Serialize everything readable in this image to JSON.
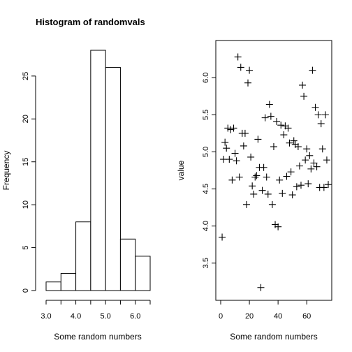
{
  "chart_data": [
    {
      "type": "bar",
      "title": "Histogram of randomvals",
      "xlabel": "Some random numbers",
      "ylabel": "Frequency",
      "bins": [
        {
          "start": 3.0,
          "end": 3.5,
          "count": 1
        },
        {
          "start": 3.5,
          "end": 4.0,
          "count": 2
        },
        {
          "start": 4.0,
          "end": 4.5,
          "count": 8
        },
        {
          "start": 4.5,
          "end": 5.0,
          "count": 28
        },
        {
          "start": 5.0,
          "end": 5.5,
          "count": 26
        },
        {
          "start": 5.5,
          "end": 6.0,
          "count": 6
        },
        {
          "start": 6.0,
          "end": 6.5,
          "count": 4
        }
      ],
      "xlim": [
        3.0,
        6.5
      ],
      "ylim": [
        0,
        28
      ],
      "xticks": [
        3.0,
        3.5,
        4.0,
        4.5,
        5.0,
        5.5,
        6.0,
        6.5
      ],
      "xtick_labels": [
        "3.0",
        "",
        "4.0",
        "",
        "5.0",
        "",
        "6.0",
        ""
      ],
      "yticks": [
        0,
        5,
        10,
        15,
        20,
        25
      ],
      "ytick_labels": [
        "0",
        "5",
        "10",
        "15",
        "20",
        "25"
      ],
      "box": false,
      "grid": false
    },
    {
      "type": "scatter",
      "title": "",
      "xlabel": "Some random numbers",
      "ylabel": "value",
      "marker": "+",
      "xlim": [
        0,
        75
      ],
      "ylim": [
        3.13,
        6.37
      ],
      "xticks": [
        0,
        20,
        40,
        60
      ],
      "xtick_labels": [
        "0",
        "20",
        "40",
        "60"
      ],
      "yticks": [
        3.5,
        4.0,
        4.5,
        5.0,
        5.5,
        6.0
      ],
      "ytick_labels": [
        "3.5",
        "4.0",
        "4.5",
        "5.0",
        "5.5",
        "6.0"
      ],
      "box": true,
      "grid": false,
      "points": [
        [
          1,
          3.85
        ],
        [
          2,
          4.9
        ],
        [
          3,
          5.13
        ],
        [
          4,
          5.05
        ],
        [
          5,
          5.32
        ],
        [
          6,
          4.9
        ],
        [
          7,
          5.3
        ],
        [
          8,
          4.62
        ],
        [
          9,
          5.32
        ],
        [
          10,
          4.98
        ],
        [
          11,
          4.88
        ],
        [
          12,
          6.28
        ],
        [
          13,
          4.66
        ],
        [
          14,
          6.14
        ],
        [
          15,
          5.25
        ],
        [
          16,
          5.08
        ],
        [
          17,
          5.25
        ],
        [
          18,
          4.29
        ],
        [
          19,
          5.93
        ],
        [
          20,
          6.1
        ],
        [
          21,
          4.93
        ],
        [
          22,
          4.54
        ],
        [
          23,
          4.43
        ],
        [
          24,
          4.66
        ],
        [
          25,
          4.68
        ],
        [
          26,
          5.17
        ],
        [
          27,
          4.79
        ],
        [
          28,
          3.17
        ],
        [
          29,
          4.48
        ],
        [
          30,
          4.79
        ],
        [
          31,
          5.46
        ],
        [
          32,
          4.66
        ],
        [
          33,
          4.43
        ],
        [
          34,
          5.64
        ],
        [
          35,
          5.48
        ],
        [
          36,
          4.29
        ],
        [
          37,
          5.07
        ],
        [
          38,
          4.02
        ],
        [
          39,
          5.41
        ],
        [
          40,
          3.99
        ],
        [
          41,
          4.62
        ],
        [
          42,
          5.36
        ],
        [
          43,
          4.44
        ],
        [
          44,
          5.23
        ],
        [
          45,
          5.35
        ],
        [
          46,
          4.67
        ],
        [
          47,
          5.32
        ],
        [
          48,
          5.12
        ],
        [
          49,
          4.73
        ],
        [
          50,
          4.42
        ],
        [
          51,
          5.15
        ],
        [
          52,
          5.1
        ],
        [
          53,
          4.53
        ],
        [
          54,
          5.07
        ],
        [
          55,
          4.81
        ],
        [
          56,
          4.55
        ],
        [
          57,
          5.9
        ],
        [
          58,
          5.75
        ],
        [
          59,
          4.89
        ],
        [
          60,
          5.04
        ],
        [
          61,
          4.57
        ],
        [
          62,
          4.95
        ],
        [
          63,
          4.77
        ],
        [
          64,
          6.1
        ],
        [
          65,
          4.85
        ],
        [
          66,
          5.6
        ],
        [
          67,
          4.8
        ],
        [
          68,
          5.5
        ],
        [
          69,
          4.52
        ],
        [
          70,
          5.38
        ],
        [
          71,
          5.04
        ],
        [
          72,
          4.52
        ],
        [
          73,
          5.5
        ],
        [
          74,
          4.89
        ],
        [
          75,
          4.56
        ]
      ]
    }
  ]
}
